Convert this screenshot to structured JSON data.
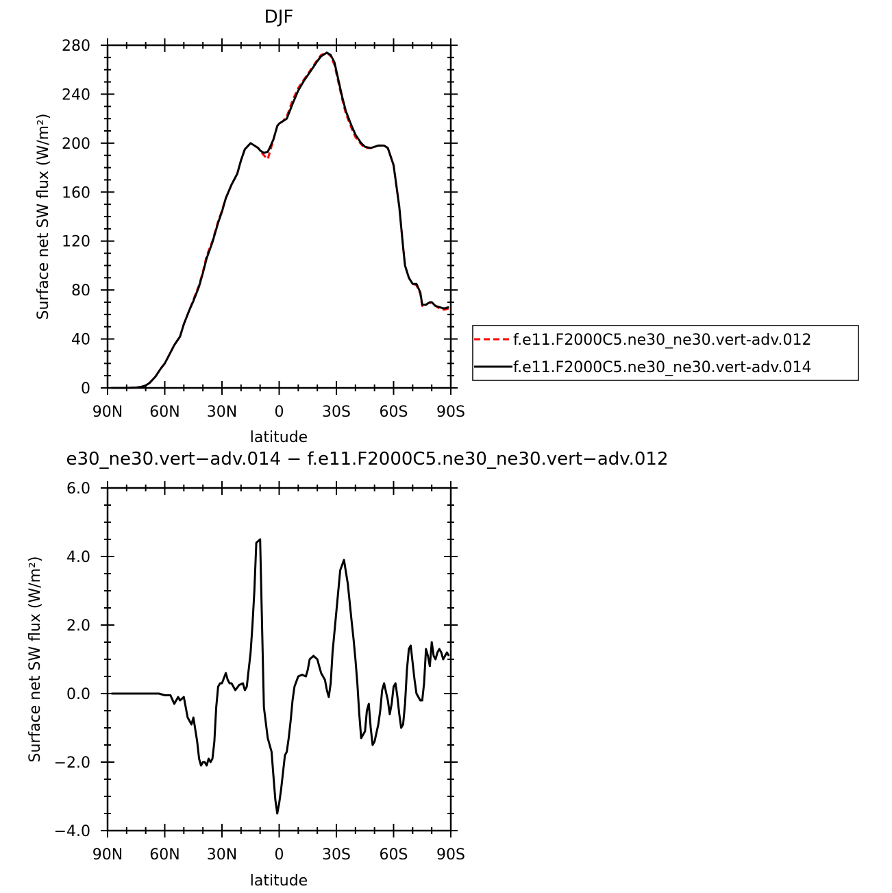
{
  "chart_data": [
    {
      "type": "line",
      "title": "DJF",
      "xlabel": "latitude",
      "ylabel": "Surface net SW flux (W/m²)",
      "xlim": [
        -90,
        90
      ],
      "ylim": [
        0,
        280
      ],
      "x_ticks": [
        -90,
        -60,
        -30,
        0,
        30,
        60,
        90
      ],
      "x_tick_labels": [
        "90N",
        "60N",
        "30N",
        "0",
        "30S",
        "60S",
        "90S"
      ],
      "y_ticks": [
        0,
        40,
        80,
        120,
        160,
        200,
        240,
        280
      ],
      "y_tick_labels": [
        "0",
        "40",
        "80",
        "120",
        "160",
        "200",
        "240",
        "280"
      ],
      "legend_position": "right",
      "series": [
        {
          "name": "f.e11.F2000C5.ne30_ne30.vert-adv.012",
          "color": "#ff0000",
          "dash": "dashed",
          "x": [
            -88,
            -80,
            -75,
            -72,
            -70,
            -68,
            -65,
            -62,
            -60,
            -58,
            -55,
            -52,
            -50,
            -47,
            -45,
            -42,
            -40,
            -38,
            -35,
            -32,
            -30,
            -28,
            -25,
            -22,
            -20,
            -18,
            -15,
            -13,
            -11,
            -10,
            -8,
            -6,
            -5,
            -3,
            -1,
            0,
            2,
            4,
            5,
            7,
            10,
            13,
            17,
            20,
            22,
            25,
            27,
            29,
            31,
            33,
            35,
            38,
            40,
            43,
            45,
            48,
            50,
            52,
            55,
            57,
            60,
            63,
            65,
            66,
            68,
            70,
            72,
            74,
            75,
            77,
            78,
            79,
            80,
            82,
            84,
            86,
            87,
            89
          ],
          "y": [
            0,
            0,
            0.3,
            1,
            2,
            4,
            9,
            16,
            20,
            26,
            35,
            42,
            52,
            64,
            72,
            84,
            95,
            108,
            120,
            136,
            145,
            155,
            166,
            175,
            186,
            195,
            200,
            198,
            196,
            194,
            190,
            187,
            192,
            203,
            214,
            216,
            218,
            222,
            226,
            235,
            245,
            252,
            261,
            268,
            272,
            274,
            271,
            264,
            250,
            236,
            224,
            212,
            205,
            199,
            196,
            196,
            197,
            198,
            198,
            196,
            182,
            148,
            115,
            100,
            90,
            85,
            84,
            77,
            67,
            68,
            69,
            70,
            69,
            67,
            65,
            64,
            64,
            65
          ]
        },
        {
          "name": "f.e11.F2000C5.ne30_ne30.vert-adv.014",
          "color": "#000000",
          "dash": "solid",
          "x": [
            -88,
            -80,
            -75,
            -72,
            -70,
            -68,
            -65,
            -62,
            -60,
            -58,
            -55,
            -52,
            -50,
            -47,
            -45,
            -42,
            -40,
            -38,
            -35,
            -32,
            -30,
            -28,
            -25,
            -22,
            -20,
            -18,
            -15,
            -13,
            -11,
            -10,
            -8,
            -6,
            -5,
            -3,
            -1,
            0,
            2,
            4,
            5,
            7,
            10,
            13,
            17,
            20,
            22,
            25,
            27,
            29,
            31,
            33,
            35,
            38,
            40,
            43,
            45,
            48,
            50,
            52,
            55,
            57,
            60,
            63,
            65,
            66,
            68,
            70,
            72,
            74,
            75,
            77,
            78,
            79,
            80,
            82,
            84,
            86,
            87,
            89
          ],
          "y": [
            0,
            0,
            0.3,
            1,
            2,
            4,
            9,
            16,
            20,
            26,
            35,
            42,
            52,
            64,
            71,
            83,
            94,
            106,
            119,
            135,
            144,
            155,
            166,
            175,
            186,
            195,
            200,
            198,
            196,
            194,
            192,
            193,
            196,
            203,
            214,
            216,
            218,
            220,
            224,
            232,
            243,
            251,
            260,
            267,
            271,
            274,
            272,
            266,
            252,
            238,
            226,
            214,
            207,
            200,
            197,
            196,
            197,
            198,
            198,
            196,
            182,
            148,
            115,
            100,
            90,
            85,
            85,
            78,
            68,
            68,
            69,
            70,
            70,
            67,
            66,
            65,
            65,
            66
          ]
        }
      ]
    },
    {
      "type": "line",
      "title": "e30_ne30.vert−adv.014 − f.e11.F2000C5.ne30_ne30.vert−adv.012",
      "xlabel": "latitude",
      "ylabel": "Surface net SW flux (W/m²)",
      "xlim": [
        -90,
        90
      ],
      "ylim": [
        -4,
        6
      ],
      "x_ticks": [
        -90,
        -60,
        -30,
        0,
        30,
        60,
        90
      ],
      "x_tick_labels": [
        "90N",
        "60N",
        "30N",
        "0",
        "30S",
        "60S",
        "90S"
      ],
      "y_ticks": [
        -4,
        -2,
        0,
        2,
        4,
        6
      ],
      "y_tick_labels": [
        "−4.0",
        "−2.0",
        "0.0",
        "2.0",
        "4.0",
        "6.0"
      ],
      "series": [
        {
          "color": "#000000",
          "dash": "solid",
          "x": [
            -88,
            -80,
            -75,
            -72,
            -70,
            -68,
            -65,
            -63,
            -60,
            -57,
            -55,
            -53,
            -52,
            -50,
            -48,
            -46,
            -45,
            -43,
            -42,
            -41,
            -40,
            -39,
            -38,
            -37,
            -36,
            -35,
            -34,
            -33,
            -32,
            -31,
            -30,
            -28,
            -27,
            -26,
            -25,
            -24,
            -23,
            -21,
            -19,
            -18,
            -17,
            -15,
            -14,
            -13,
            -12,
            -10,
            -9,
            -8,
            -6,
            -5,
            -4,
            -3,
            -2,
            -1,
            0,
            1,
            2,
            3,
            4,
            5,
            6,
            7,
            8,
            10,
            12,
            14,
            15,
            16,
            18,
            20,
            21,
            22,
            24,
            25,
            26,
            27,
            28,
            30,
            32,
            34,
            36,
            38,
            39,
            40,
            41,
            42,
            43,
            45,
            46,
            47,
            48,
            49,
            50,
            52,
            53,
            54,
            55,
            57,
            58,
            59,
            60,
            61,
            62,
            63,
            64,
            65,
            66,
            67,
            68,
            69,
            70,
            71,
            72,
            73,
            74,
            75,
            76,
            77,
            78,
            79,
            80,
            81,
            82,
            83,
            84,
            85,
            86,
            87,
            88,
            89
          ],
          "y": [
            0,
            0,
            0,
            0,
            0,
            0,
            0,
            0,
            -0.05,
            -0.05,
            -0.3,
            -0.1,
            -0.2,
            -0.1,
            -0.7,
            -0.9,
            -0.7,
            -1.4,
            -1.9,
            -2.1,
            -2.0,
            -2.0,
            -2.1,
            -1.9,
            -2.0,
            -1.9,
            -1.4,
            -0.4,
            0.2,
            0.3,
            0.3,
            0.6,
            0.4,
            0.3,
            0.3,
            0.2,
            0.1,
            0.25,
            0.3,
            0.1,
            0.2,
            1.2,
            2.0,
            3.0,
            4.4,
            4.5,
            2.0,
            -0.4,
            -1.3,
            -1.5,
            -1.7,
            -2.4,
            -3.1,
            -3.5,
            -3.2,
            -2.8,
            -2.3,
            -1.8,
            -1.7,
            -1.3,
            -0.8,
            -0.2,
            0.2,
            0.5,
            0.55,
            0.5,
            0.7,
            1.0,
            1.1,
            1.0,
            0.8,
            0.6,
            0.4,
            0.1,
            -0.1,
            0.3,
            1.2,
            2.4,
            3.6,
            3.9,
            3.2,
            2.1,
            1.6,
            1.0,
            0.3,
            -0.6,
            -1.3,
            -1.1,
            -0.5,
            -0.3,
            -1.0,
            -1.5,
            -1.4,
            -0.9,
            -0.5,
            0.1,
            0.3,
            -0.2,
            -0.6,
            -0.3,
            0.2,
            0.3,
            -0.1,
            -0.6,
            -1.0,
            -0.9,
            -0.3,
            0.7,
            1.3,
            1.4,
            0.9,
            0.4,
            0.0,
            -0.1,
            -0.2,
            -0.2,
            0.3,
            1.3,
            1.1,
            0.8,
            1.5,
            1.1,
            1.0,
            1.2,
            1.3,
            1.2,
            1.0,
            1.1,
            1.2,
            1.1
          ]
        }
      ]
    }
  ]
}
